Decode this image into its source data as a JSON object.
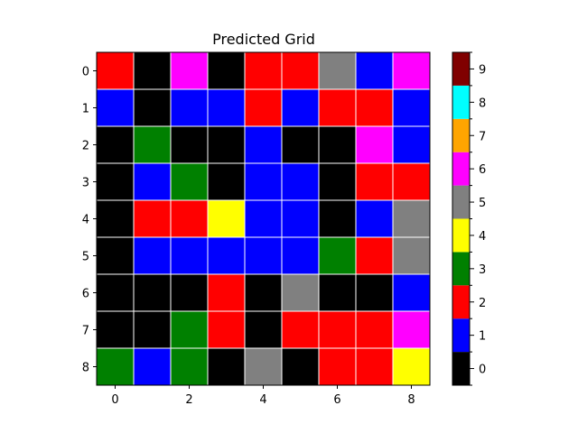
{
  "chart_data": {
    "type": "heatmap",
    "title": "Predicted Grid",
    "xlabel": "",
    "ylabel": "",
    "x_ticks": [
      "0",
      "2",
      "4",
      "6",
      "8"
    ],
    "y_ticks": [
      "0",
      "1",
      "2",
      "3",
      "4",
      "5",
      "6",
      "7",
      "8"
    ],
    "colorbar": {
      "ticks": [
        "0",
        "1",
        "2",
        "3",
        "4",
        "5",
        "6",
        "7",
        "8",
        "9"
      ],
      "colors": [
        "#000000",
        "#0000ff",
        "#ff0000",
        "#008000",
        "#ffff00",
        "#808080",
        "#ff00ff",
        "#ffa500",
        "#00ffff",
        "#800000"
      ]
    },
    "grid": [
      [
        2,
        0,
        6,
        0,
        2,
        2,
        5,
        1,
        6
      ],
      [
        1,
        0,
        1,
        1,
        2,
        1,
        2,
        2,
        1
      ],
      [
        0,
        3,
        0,
        0,
        1,
        0,
        0,
        6,
        1
      ],
      [
        0,
        1,
        3,
        0,
        1,
        1,
        0,
        2,
        2
      ],
      [
        0,
        2,
        2,
        4,
        1,
        1,
        0,
        1,
        5
      ],
      [
        0,
        1,
        1,
        1,
        1,
        1,
        3,
        2,
        5
      ],
      [
        0,
        0,
        0,
        2,
        0,
        5,
        0,
        0,
        1
      ],
      [
        0,
        0,
        3,
        2,
        0,
        2,
        2,
        2,
        6
      ],
      [
        3,
        1,
        3,
        0,
        5,
        0,
        2,
        2,
        4
      ]
    ]
  }
}
